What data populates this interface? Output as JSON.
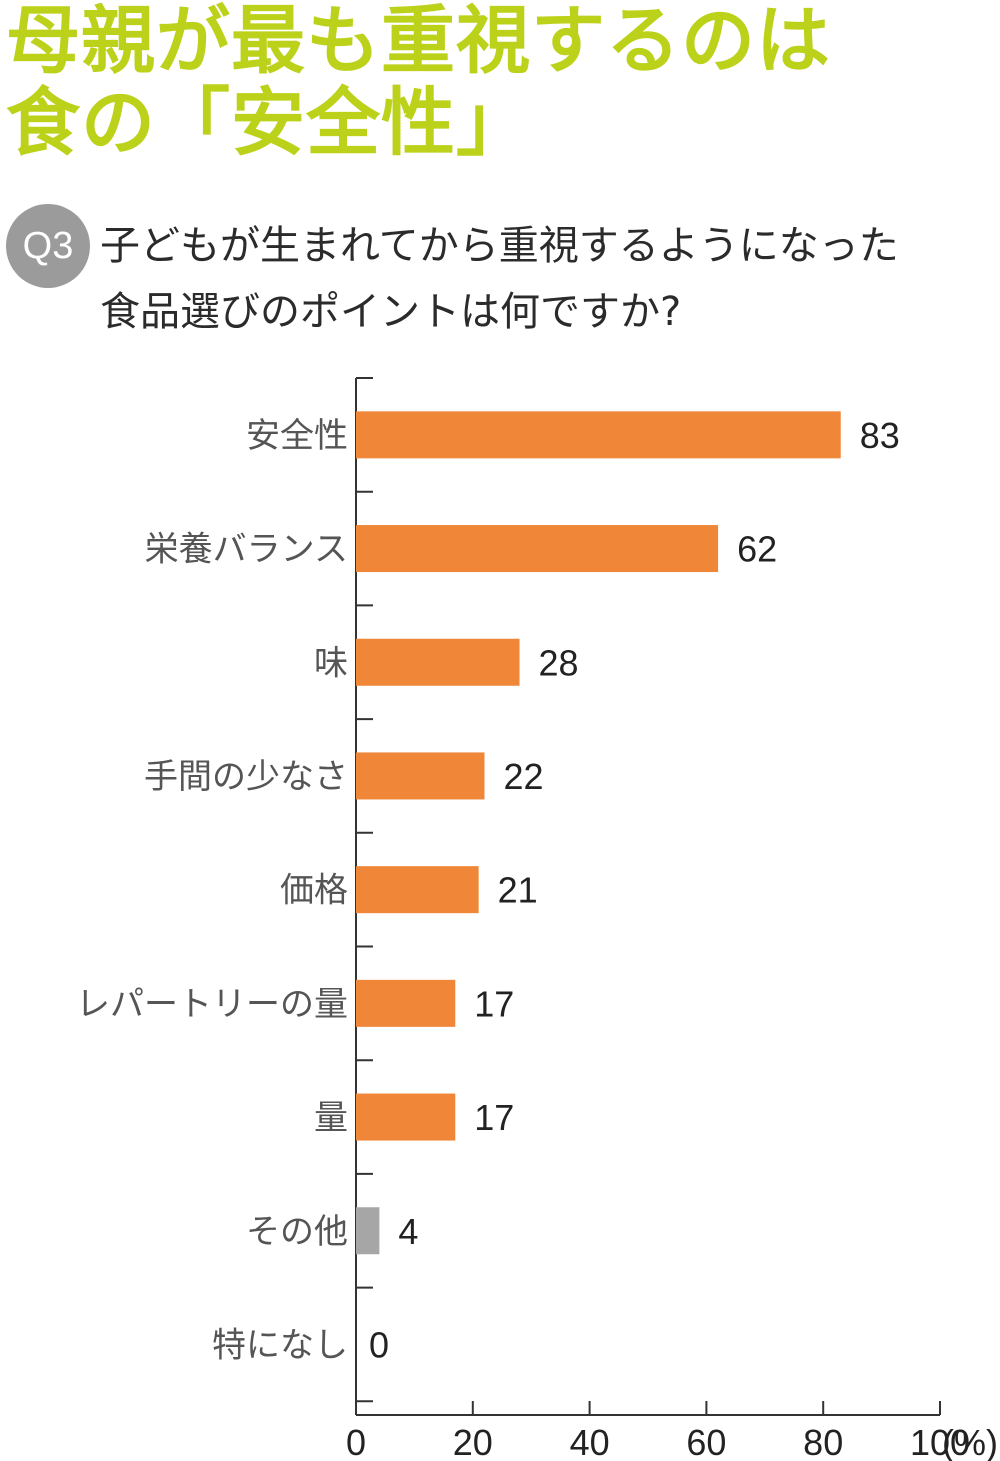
{
  "headline": {
    "line1": "母親が最も重視するのは",
    "line2": "食の「安全性」"
  },
  "question": {
    "badge": "Q3",
    "line1": "子どもが生まれてから重視するようになった",
    "line2": "食品選びのポイントは何ですか?"
  },
  "colors": {
    "headline": "#bcd21a",
    "bar": "#ef8638",
    "bar_other": "#a6a6a6",
    "badge": "#9b9b9b"
  },
  "chart_data": {
    "type": "bar",
    "orientation": "horizontal",
    "title": "",
    "xlabel": "",
    "ylabel": "",
    "categories": [
      "安全性",
      "栄養バランス",
      "味",
      "手間の少なさ",
      "価格",
      "レパートリーの量",
      "量",
      "その他",
      "特になし"
    ],
    "values": [
      83,
      62,
      28,
      22,
      21,
      17,
      17,
      4,
      0
    ],
    "value_labels": [
      "83",
      "62",
      "28",
      "22",
      "21",
      "17",
      "17",
      "4",
      "0"
    ],
    "bar_colors": [
      "bar",
      "bar",
      "bar",
      "bar",
      "bar",
      "bar",
      "bar",
      "bar_other",
      "bar_other"
    ],
    "xlim": [
      0,
      100
    ],
    "xticks": [
      0,
      20,
      40,
      60,
      80,
      100
    ],
    "xtick_labels": [
      "0",
      "20",
      "40",
      "60",
      "80",
      "100"
    ],
    "unit": "(%)",
    "grid": false,
    "legend": "none"
  }
}
